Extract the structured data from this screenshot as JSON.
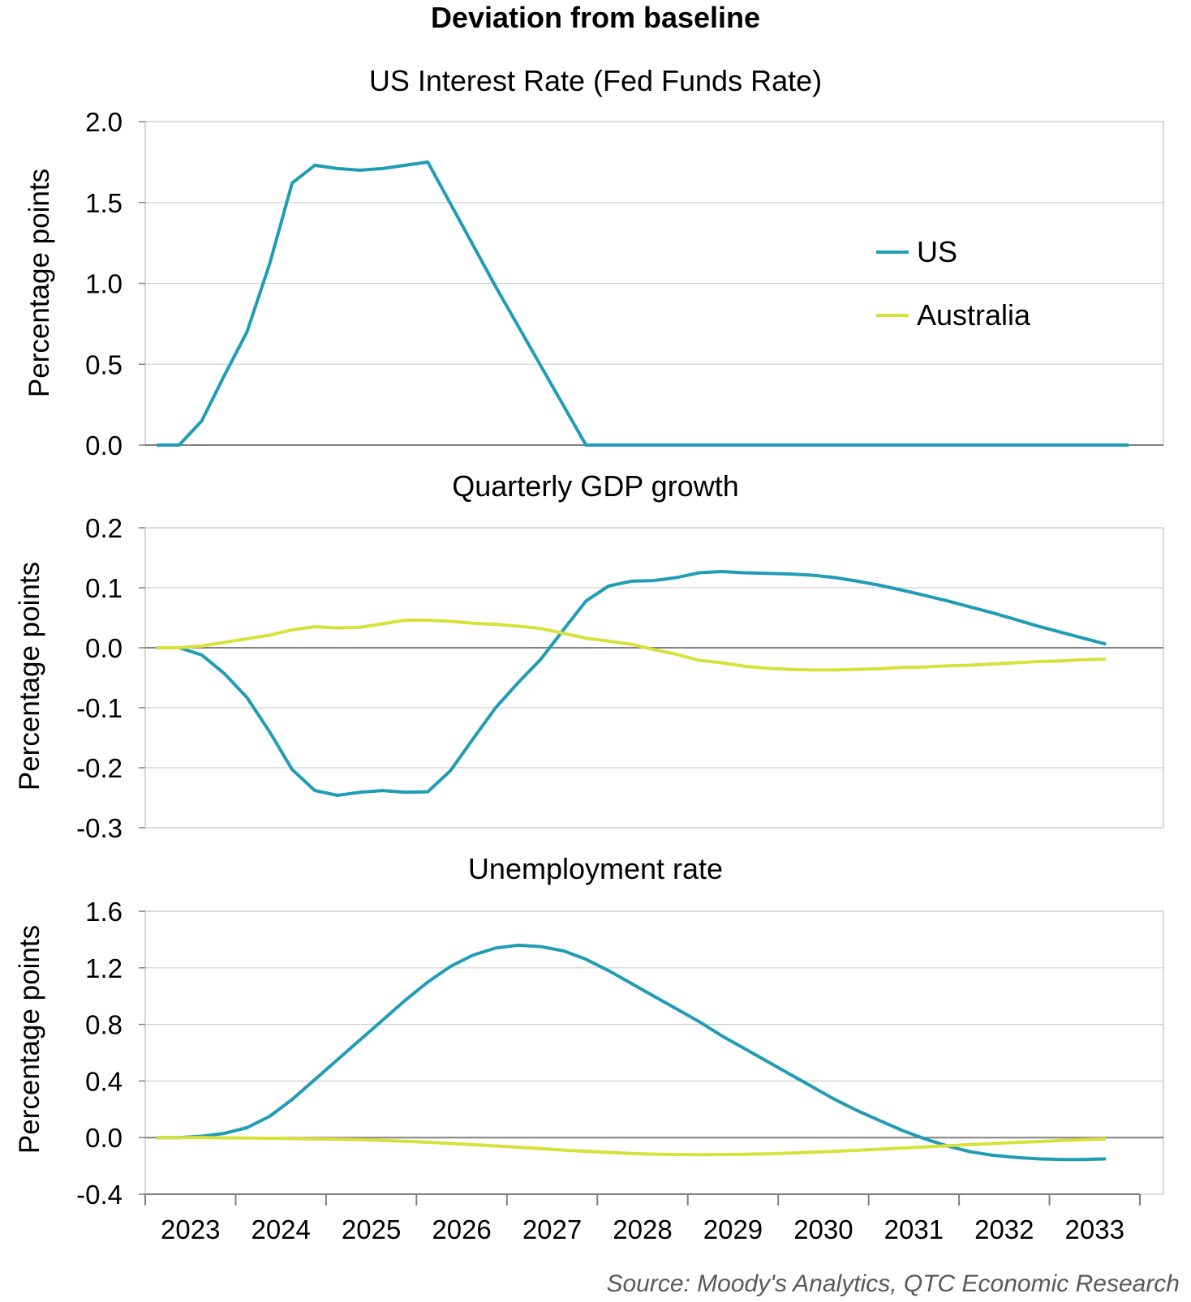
{
  "figure": {
    "title": "Deviation from baseline",
    "source": "Source: Moody's Analytics, QTC Economic Research",
    "x_tick_labels": [
      "2023",
      "2024",
      "2025",
      "2026",
      "2027",
      "2028",
      "2029",
      "2030",
      "2031",
      "2032",
      "2033"
    ],
    "legend": [
      {
        "name": "US",
        "color": "#1f9cb6"
      },
      {
        "name": "Australia",
        "color": "#d8e03a"
      }
    ]
  },
  "chart_data": [
    {
      "type": "line",
      "title": "US Interest Rate (Fed Funds Rate)",
      "ylabel": "Percentage points",
      "xlabel": "",
      "ylim": [
        0,
        2.0
      ],
      "yticks": [
        "0.0",
        "0.5",
        "1.0",
        "1.5",
        "2.0"
      ],
      "grid": true,
      "legend": "right",
      "x_start": "2023Q1",
      "x_end": "2033Q4",
      "series": [
        {
          "name": "US",
          "color": "#1f9cb6",
          "points": [
            [
              "2023Q1",
              0.0
            ],
            [
              "2023Q2",
              0.0
            ],
            [
              "2023Q3",
              0.15
            ],
            [
              "2023Q4",
              0.43
            ],
            [
              "2024Q1",
              0.7
            ],
            [
              "2024Q2",
              1.12
            ],
            [
              "2024Q3",
              1.62
            ],
            [
              "2024Q4",
              1.73
            ],
            [
              "2025Q1",
              1.71
            ],
            [
              "2025Q2",
              1.7
            ],
            [
              "2025Q3",
              1.71
            ],
            [
              "2025Q4",
              1.73
            ],
            [
              "2026Q1",
              1.75
            ],
            [
              "2026Q4",
              0.98
            ],
            [
              "2027Q4",
              0.0
            ],
            [
              "2033Q4",
              0.0
            ]
          ]
        }
      ]
    },
    {
      "type": "line",
      "title": "Quarterly GDP growth",
      "ylabel": "Percentage points",
      "xlabel": "",
      "ylim": [
        -0.3,
        0.2
      ],
      "yticks": [
        "-0.3",
        "-0.2",
        "-0.1",
        "0.0",
        "0.1",
        "0.2"
      ],
      "grid": true,
      "series": [
        {
          "name": "US",
          "color": "#1f9cb6",
          "points": [
            [
              "2023Q1",
              0.0
            ],
            [
              "2023Q2",
              0.0
            ],
            [
              "2023Q3",
              -0.012
            ],
            [
              "2023Q4",
              -0.043
            ],
            [
              "2024Q1",
              -0.083
            ],
            [
              "2024Q2",
              -0.14
            ],
            [
              "2024Q3",
              -0.203
            ],
            [
              "2024Q4",
              -0.238
            ],
            [
              "2025Q1",
              -0.246
            ],
            [
              "2025Q2",
              -0.241
            ],
            [
              "2025Q3",
              -0.238
            ],
            [
              "2025Q4",
              -0.241
            ],
            [
              "2026Q1",
              -0.24
            ],
            [
              "2026Q2",
              -0.205
            ],
            [
              "2026Q3",
              -0.152
            ],
            [
              "2026Q4",
              -0.1
            ],
            [
              "2027Q1",
              -0.058
            ],
            [
              "2027Q2",
              -0.019
            ],
            [
              "2027Q3",
              0.03
            ],
            [
              "2027Q4",
              0.078
            ],
            [
              "2028Q1",
              0.103
            ],
            [
              "2028Q2",
              0.111
            ],
            [
              "2028Q3",
              0.112
            ],
            [
              "2028Q4",
              0.117
            ],
            [
              "2029Q1",
              0.125
            ],
            [
              "2029Q2",
              0.127
            ],
            [
              "2029Q3",
              0.125
            ],
            [
              "2029Q4",
              0.124
            ],
            [
              "2030Q1",
              0.123
            ],
            [
              "2030Q2",
              0.121
            ],
            [
              "2030Q3",
              0.117
            ],
            [
              "2030Q4",
              0.111
            ],
            [
              "2031Q1",
              0.104
            ],
            [
              "2031Q2",
              0.096
            ],
            [
              "2031Q3",
              0.087
            ],
            [
              "2031Q4",
              0.078
            ],
            [
              "2032Q1",
              0.068
            ],
            [
              "2032Q2",
              0.058
            ],
            [
              "2032Q3",
              0.047
            ],
            [
              "2032Q4",
              0.036
            ],
            [
              "2033Q1",
              0.026
            ],
            [
              "2033Q2",
              0.016
            ],
            [
              "2033Q3",
              0.006
            ]
          ]
        },
        {
          "name": "Australia",
          "color": "#d8e03a",
          "points": [
            [
              "2023Q1",
              0.0
            ],
            [
              "2023Q2",
              0.0
            ],
            [
              "2023Q3",
              0.003
            ],
            [
              "2023Q4",
              0.009
            ],
            [
              "2024Q1",
              0.015
            ],
            [
              "2024Q2",
              0.021
            ],
            [
              "2024Q3",
              0.03
            ],
            [
              "2024Q4",
              0.035
            ],
            [
              "2025Q1",
              0.033
            ],
            [
              "2025Q2",
              0.034
            ],
            [
              "2025Q3",
              0.04
            ],
            [
              "2025Q4",
              0.046
            ],
            [
              "2026Q1",
              0.046
            ],
            [
              "2026Q2",
              0.044
            ],
            [
              "2026Q3",
              0.041
            ],
            [
              "2026Q4",
              0.039
            ],
            [
              "2027Q1",
              0.036
            ],
            [
              "2027Q2",
              0.032
            ],
            [
              "2027Q3",
              0.024
            ],
            [
              "2027Q4",
              0.016
            ],
            [
              "2028Q1",
              0.011
            ],
            [
              "2028Q2",
              0.006
            ],
            [
              "2028Q3",
              -0.003
            ],
            [
              "2028Q4",
              -0.011
            ],
            [
              "2029Q1",
              -0.021
            ],
            [
              "2029Q2",
              -0.025
            ],
            [
              "2029Q3",
              -0.031
            ],
            [
              "2029Q4",
              -0.034
            ],
            [
              "2030Q1",
              -0.036
            ],
            [
              "2030Q2",
              -0.037
            ],
            [
              "2030Q3",
              -0.037
            ],
            [
              "2030Q4",
              -0.036
            ],
            [
              "2031Q1",
              -0.035
            ],
            [
              "2031Q2",
              -0.033
            ],
            [
              "2031Q3",
              -0.032
            ],
            [
              "2031Q4",
              -0.03
            ],
            [
              "2032Q1",
              -0.029
            ],
            [
              "2032Q2",
              -0.027
            ],
            [
              "2032Q3",
              -0.025
            ],
            [
              "2032Q4",
              -0.023
            ],
            [
              "2033Q1",
              -0.022
            ],
            [
              "2033Q2",
              -0.02
            ],
            [
              "2033Q3",
              -0.019
            ]
          ]
        }
      ]
    },
    {
      "type": "line",
      "title": "Unemployment rate",
      "ylabel": "Percentage points",
      "xlabel": "",
      "ylim": [
        -0.4,
        1.6
      ],
      "yticks": [
        "-0.4",
        "0.0",
        "0.4",
        "0.8",
        "1.2",
        "1.6"
      ],
      "grid": true,
      "series": [
        {
          "name": "US",
          "color": "#1f9cb6",
          "points": [
            [
              "2023Q1",
              0.0
            ],
            [
              "2023Q2",
              0.0
            ],
            [
              "2023Q3",
              0.01
            ],
            [
              "2023Q4",
              0.03
            ],
            [
              "2024Q1",
              0.07
            ],
            [
              "2024Q2",
              0.15
            ],
            [
              "2024Q3",
              0.27
            ],
            [
              "2024Q4",
              0.41
            ],
            [
              "2025Q1",
              0.55
            ],
            [
              "2025Q2",
              0.69
            ],
            [
              "2025Q3",
              0.83
            ],
            [
              "2025Q4",
              0.97
            ],
            [
              "2026Q1",
              1.1
            ],
            [
              "2026Q2",
              1.21
            ],
            [
              "2026Q3",
              1.29
            ],
            [
              "2026Q4",
              1.34
            ],
            [
              "2027Q1",
              1.36
            ],
            [
              "2027Q2",
              1.35
            ],
            [
              "2027Q3",
              1.32
            ],
            [
              "2027Q4",
              1.26
            ],
            [
              "2028Q1",
              1.18
            ],
            [
              "2028Q2",
              1.09
            ],
            [
              "2028Q3",
              1.0
            ],
            [
              "2028Q4",
              0.91
            ],
            [
              "2029Q1",
              0.82
            ],
            [
              "2029Q2",
              0.72
            ],
            [
              "2029Q3",
              0.63
            ],
            [
              "2029Q4",
              0.54
            ],
            [
              "2030Q1",
              0.45
            ],
            [
              "2030Q2",
              0.36
            ],
            [
              "2030Q3",
              0.27
            ],
            [
              "2030Q4",
              0.19
            ],
            [
              "2031Q1",
              0.12
            ],
            [
              "2031Q2",
              0.05
            ],
            [
              "2031Q3",
              -0.01
            ],
            [
              "2031Q4",
              -0.06
            ],
            [
              "2032Q1",
              -0.1
            ],
            [
              "2032Q2",
              -0.125
            ],
            [
              "2032Q3",
              -0.14
            ],
            [
              "2032Q4",
              -0.15
            ],
            [
              "2033Q1",
              -0.155
            ],
            [
              "2033Q2",
              -0.155
            ],
            [
              "2033Q3",
              -0.15
            ]
          ]
        },
        {
          "name": "Australia",
          "color": "#d8e03a",
          "points": [
            [
              "2023Q1",
              0.0
            ],
            [
              "2023Q2",
              0.0
            ],
            [
              "2023Q3",
              0.0
            ],
            [
              "2023Q4",
              -0.002
            ],
            [
              "2024Q1",
              -0.003
            ],
            [
              "2024Q2",
              -0.005
            ],
            [
              "2024Q3",
              -0.007
            ],
            [
              "2024Q4",
              -0.009
            ],
            [
              "2025Q1",
              -0.012
            ],
            [
              "2025Q2",
              -0.015
            ],
            [
              "2025Q3",
              -0.02
            ],
            [
              "2025Q4",
              -0.026
            ],
            [
              "2026Q1",
              -0.033
            ],
            [
              "2026Q2",
              -0.041
            ],
            [
              "2026Q3",
              -0.05
            ],
            [
              "2026Q4",
              -0.059
            ],
            [
              "2027Q1",
              -0.068
            ],
            [
              "2027Q2",
              -0.078
            ],
            [
              "2027Q3",
              -0.088
            ],
            [
              "2027Q4",
              -0.097
            ],
            [
              "2028Q1",
              -0.105
            ],
            [
              "2028Q2",
              -0.112
            ],
            [
              "2028Q3",
              -0.117
            ],
            [
              "2028Q4",
              -0.12
            ],
            [
              "2029Q1",
              -0.121
            ],
            [
              "2029Q2",
              -0.12
            ],
            [
              "2029Q3",
              -0.118
            ],
            [
              "2029Q4",
              -0.115
            ],
            [
              "2030Q1",
              -0.11
            ],
            [
              "2030Q2",
              -0.104
            ],
            [
              "2030Q3",
              -0.097
            ],
            [
              "2030Q4",
              -0.09
            ],
            [
              "2031Q1",
              -0.082
            ],
            [
              "2031Q2",
              -0.074
            ],
            [
              "2031Q3",
              -0.066
            ],
            [
              "2031Q4",
              -0.058
            ],
            [
              "2032Q1",
              -0.05
            ],
            [
              "2032Q2",
              -0.042
            ],
            [
              "2032Q3",
              -0.035
            ],
            [
              "2032Q4",
              -0.028
            ],
            [
              "2033Q1",
              -0.021
            ],
            [
              "2033Q2",
              -0.015
            ],
            [
              "2033Q3",
              -0.01
            ]
          ]
        }
      ]
    }
  ]
}
